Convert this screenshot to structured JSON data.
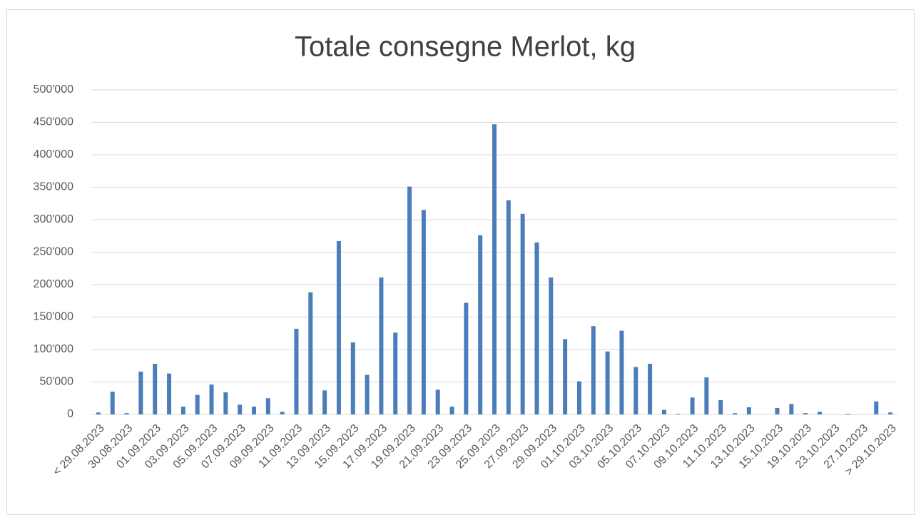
{
  "chart_data": {
    "type": "bar",
    "title": "Totale consegne Merlot, kg",
    "categories": [
      "< 29.08.2023",
      null,
      "30.08.2023",
      null,
      "01.09.2023",
      null,
      "03.09.2023",
      null,
      "05.09.2023",
      null,
      "07.09.2023",
      null,
      "09.09.2023",
      null,
      "11.09.2023",
      null,
      "13.09.2023",
      null,
      "15.09.2023",
      null,
      "17.09.2023",
      null,
      "19.09.2023",
      null,
      "21.09.2023",
      null,
      "23.09.2023",
      null,
      "25.09.2023",
      null,
      "27.09.2023",
      null,
      "29.09.2023",
      null,
      "01.10.2023",
      null,
      "03.10.2023",
      null,
      "05.10.2023",
      null,
      "07.10.2023",
      null,
      "09.10.2023",
      null,
      "11.10.2023",
      null,
      "13.10.2023",
      null,
      "15.10.2023",
      null,
      "19.10.2023",
      null,
      "23.10.2023",
      null,
      "27.10.2023",
      null,
      "> 29.10.2023"
    ],
    "values": [
      3000,
      35000,
      2000,
      66000,
      78000,
      63000,
      12000,
      30000,
      46000,
      34000,
      15000,
      12000,
      25000,
      4000,
      132000,
      188000,
      37000,
      267000,
      111000,
      61000,
      211000,
      126000,
      351000,
      315000,
      38000,
      12000,
      172000,
      276000,
      447000,
      330000,
      309000,
      265000,
      211000,
      116000,
      51000,
      136000,
      97000,
      129000,
      73000,
      78000,
      7000,
      1000,
      26000,
      57000,
      22000,
      2000,
      11000,
      0,
      10000,
      16000,
      2000,
      4000,
      0,
      1000,
      0,
      20000,
      3000
    ],
    "color": "#4a7ebb",
    "ylim": [
      0,
      500000
    ],
    "yticks": [
      0,
      {
        "value": 50000,
        "label": "50'000"
      },
      {
        "value": 100000,
        "label": "100'000"
      },
      {
        "value": 150000,
        "label": "150'000"
      },
      {
        "value": 200000,
        "label": "200'000"
      },
      {
        "value": 250000,
        "label": "250'000"
      },
      {
        "value": 300000,
        "label": "300'000"
      },
      {
        "value": 350000,
        "label": "350'000"
      },
      {
        "value": 400000,
        "label": "400'000"
      },
      {
        "value": 450000,
        "label": "450'000"
      },
      {
        "value": 500000,
        "label": "500'000"
      }
    ],
    "grid": true
  }
}
